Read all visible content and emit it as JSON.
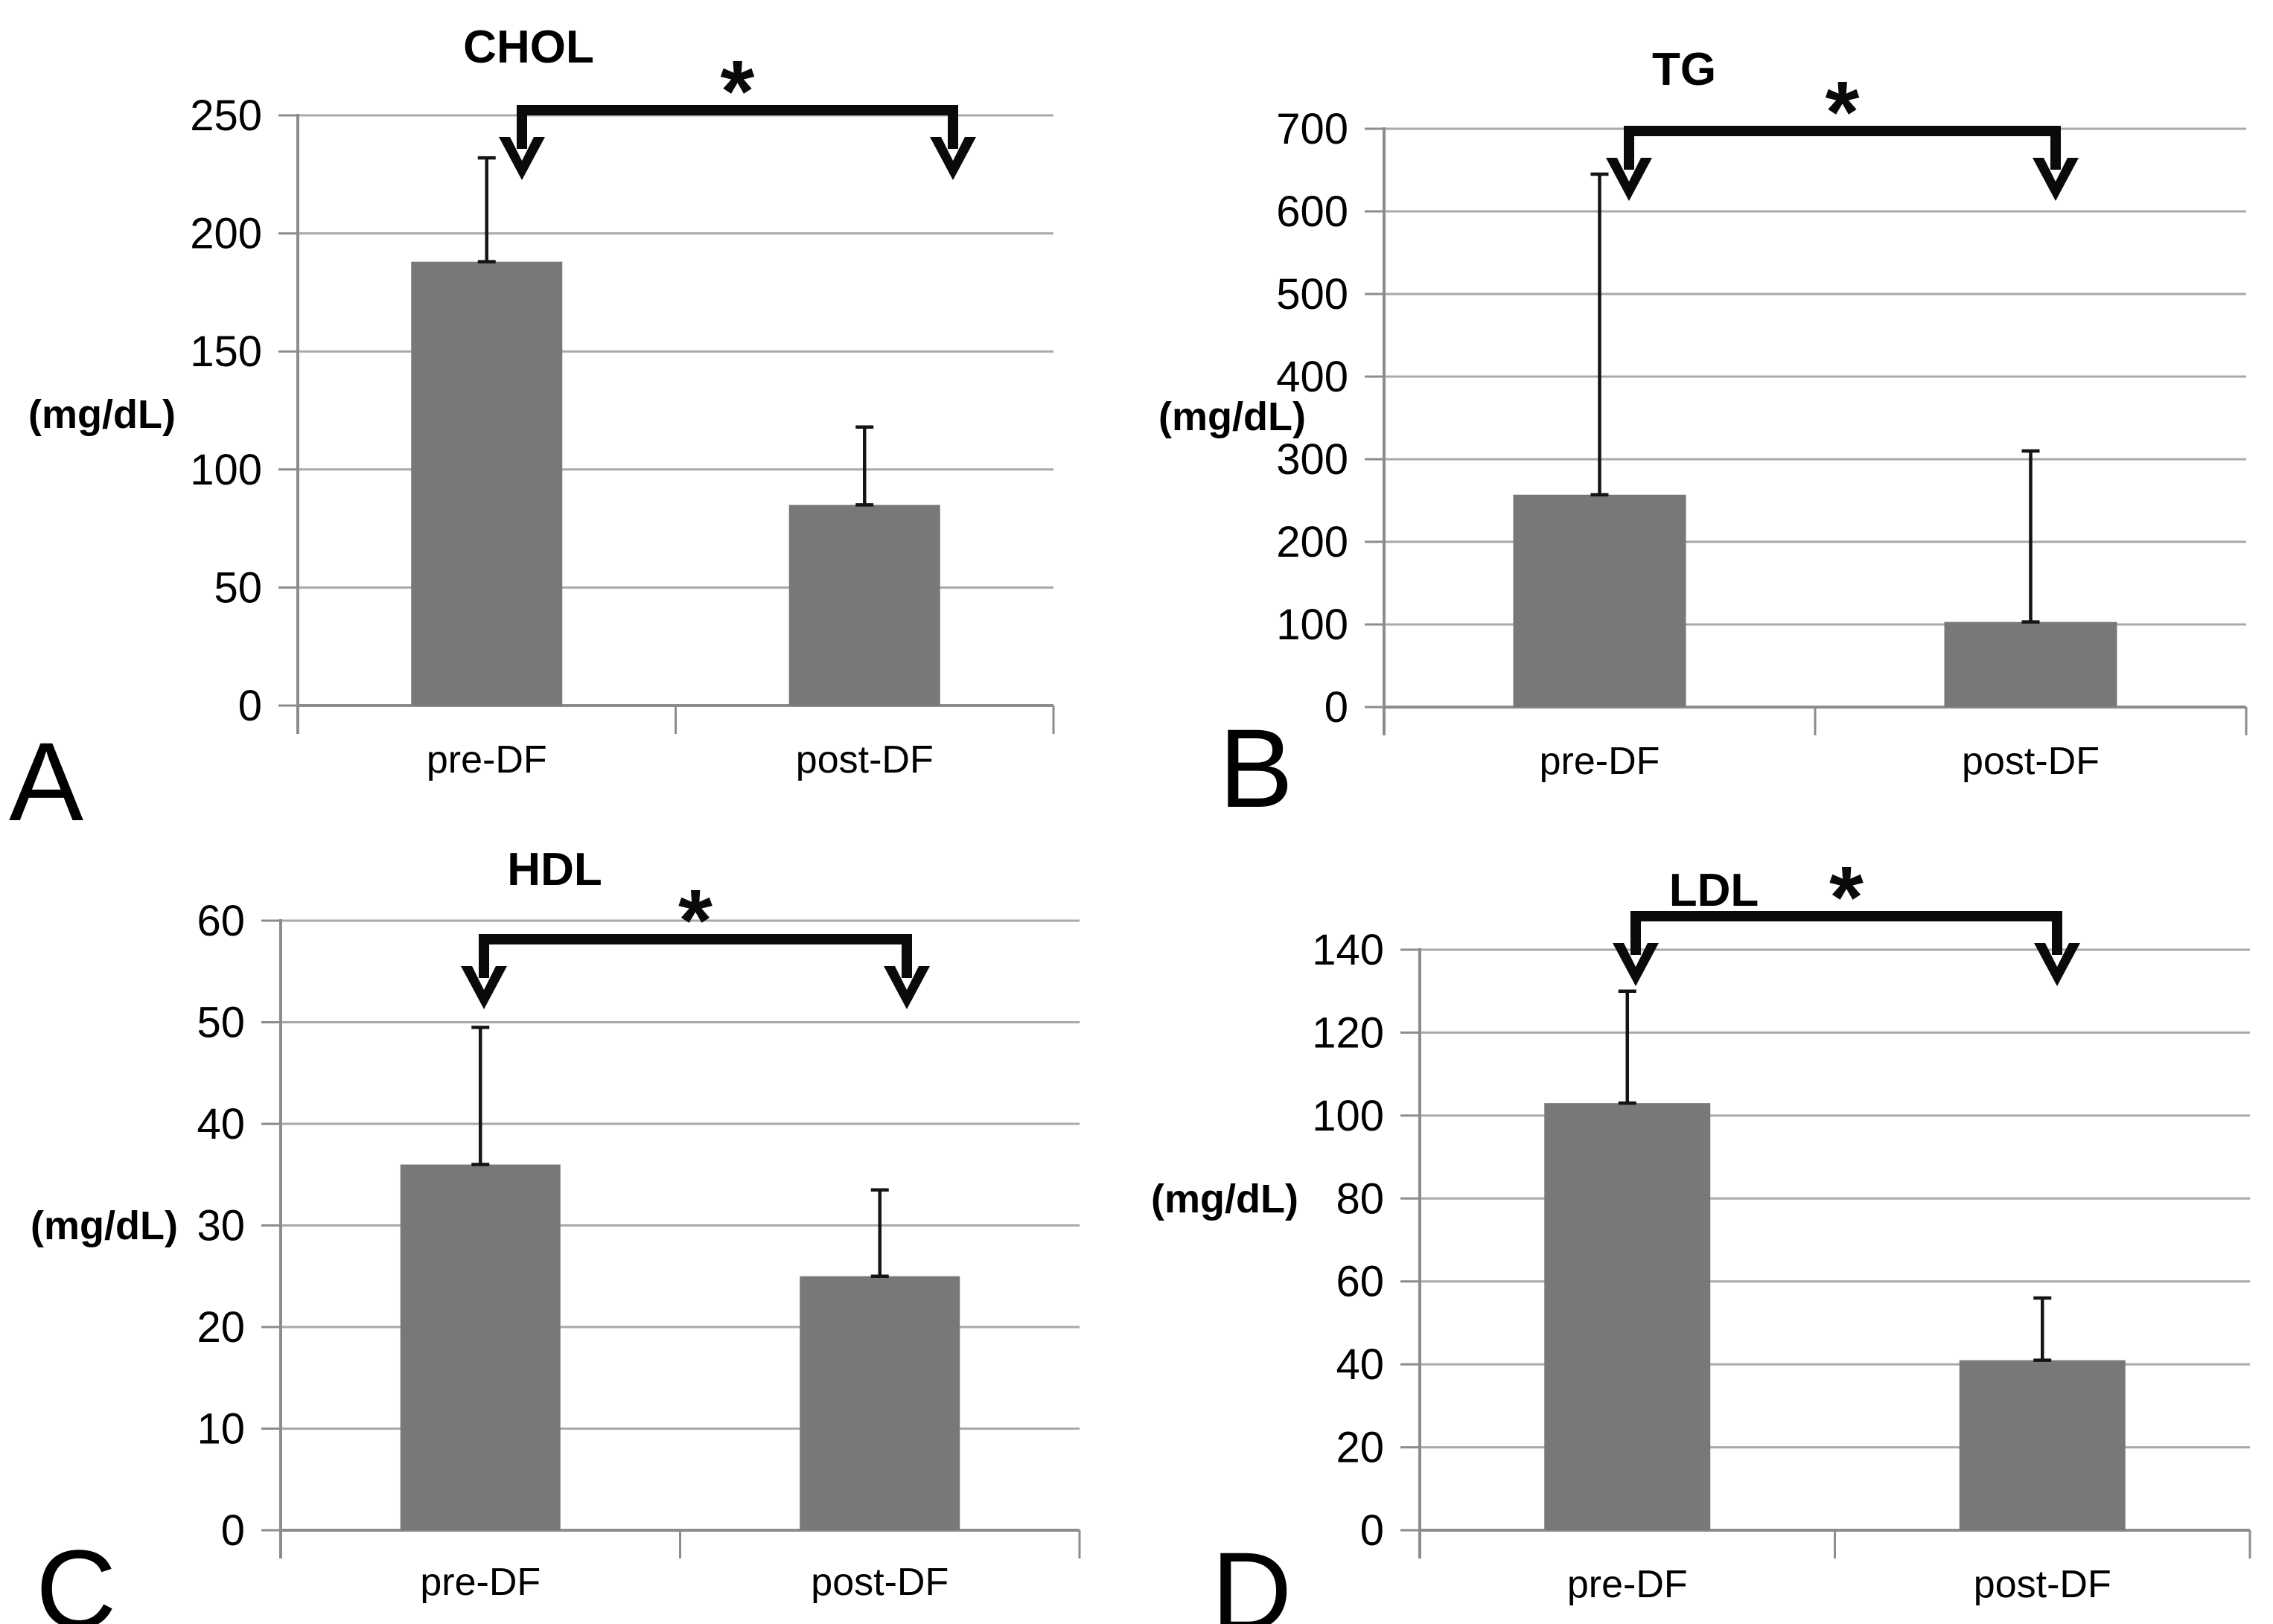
{
  "figure": {
    "background": "#ffffff",
    "bar_color": "#787878",
    "grid_color": "#a9a9a9",
    "axis_color": "#8c8c8c",
    "error_bar_color": "#141414",
    "annotation_color": "#0a0a0a",
    "text_color": "#000000"
  },
  "chart_data": [
    {
      "type": "bar",
      "panel_letter": "A",
      "title": "CHOL",
      "ylabel": "(mg/dL)",
      "categories": [
        "pre-DF",
        "post-DF"
      ],
      "values": [
        188,
        85
      ],
      "error_plus": [
        44,
        33
      ],
      "error_bar_tops": [
        232,
        118
      ],
      "ylim": [
        0,
        250
      ],
      "yticks": [
        0,
        50,
        100,
        150,
        200,
        250
      ],
      "significance_label": "*",
      "significance": "pre-DF vs post-DF, significant decrease",
      "grid": true,
      "legend": null
    },
    {
      "type": "bar",
      "panel_letter": "B",
      "title": "TG",
      "ylabel": "(mg/dL)",
      "categories": [
        "pre-DF",
        "post-DF"
      ],
      "values": [
        257,
        103
      ],
      "error_plus": [
        388,
        207
      ],
      "error_bar_tops": [
        645,
        310
      ],
      "ylim": [
        0,
        700
      ],
      "yticks": [
        0,
        100,
        200,
        300,
        400,
        500,
        600,
        700
      ],
      "significance_label": "*",
      "significance": "pre-DF vs post-DF, significant decrease",
      "grid": true,
      "legend": null
    },
    {
      "type": "bar",
      "panel_letter": "C",
      "title": "HDL",
      "ylabel": "(mg/dL)",
      "categories": [
        "pre-DF",
        "post-DF"
      ],
      "values": [
        36,
        25
      ],
      "error_plus": [
        13.5,
        8.5
      ],
      "error_bar_tops": [
        49.5,
        33.5
      ],
      "ylim": [
        0,
        60
      ],
      "yticks": [
        0,
        10,
        20,
        30,
        40,
        50,
        60
      ],
      "significance_label": "*",
      "significance": "pre-DF vs post-DF, significant decrease",
      "grid": true,
      "legend": null
    },
    {
      "type": "bar",
      "panel_letter": "D",
      "title": "LDL",
      "ylabel": "(mg/dL)",
      "categories": [
        "pre-DF",
        "post-DF"
      ],
      "values": [
        103,
        41
      ],
      "error_plus": [
        27,
        15
      ],
      "error_bar_tops": [
        130,
        56
      ],
      "ylim": [
        0,
        140
      ],
      "yticks": [
        0,
        20,
        40,
        60,
        80,
        100,
        120,
        140
      ],
      "significance_label": "*",
      "significance": "pre-DF vs post-DF, significant decrease",
      "grid": true,
      "legend": null
    }
  ]
}
